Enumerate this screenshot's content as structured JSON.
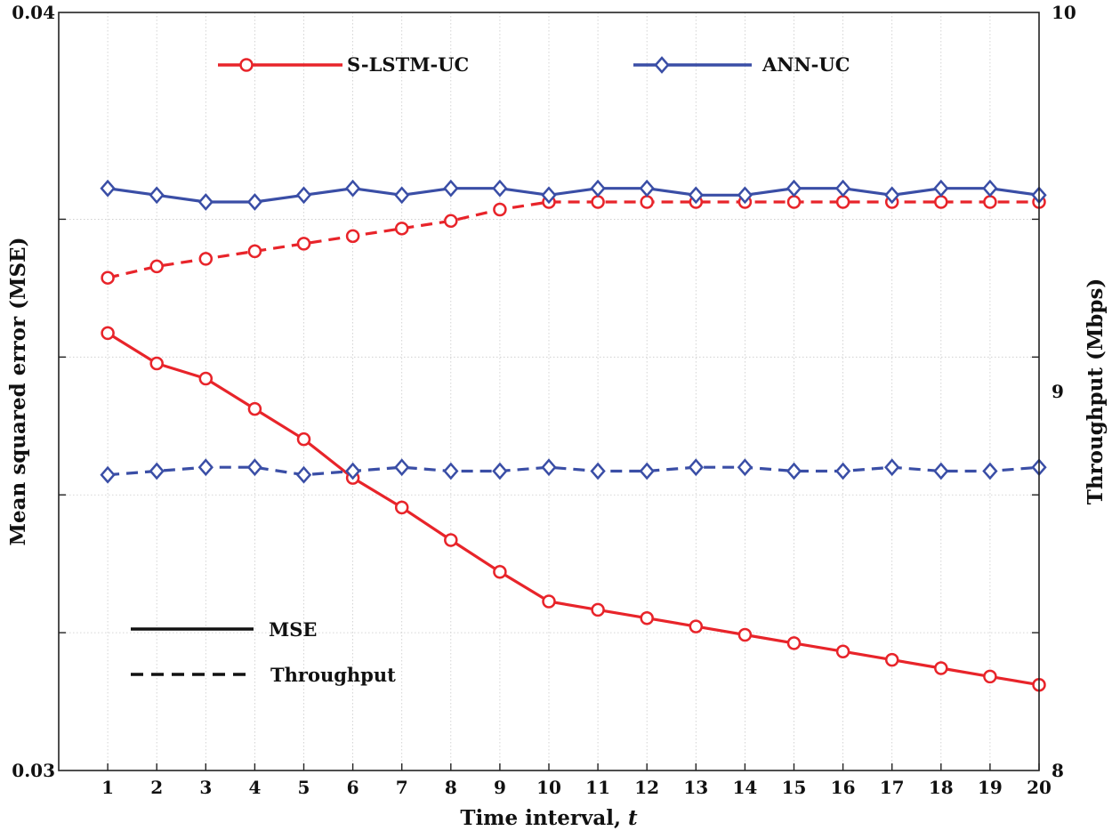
{
  "chart_data": {
    "type": "line",
    "xlabel": "Time interval,",
    "xlabel_var": "t",
    "ylabel_left": "Mean squared error (MSE)",
    "ylabel_right": "Throughput (Mbps)",
    "x": [
      1,
      2,
      3,
      4,
      5,
      6,
      7,
      8,
      9,
      10,
      11,
      12,
      13,
      14,
      15,
      16,
      17,
      18,
      19,
      20
    ],
    "x_tick_labels": [
      "1",
      "2",
      "3",
      "4",
      "5",
      "6",
      "7",
      "8",
      "9",
      "10",
      "11",
      "12",
      "13",
      "14",
      "15",
      "16",
      "17",
      "18",
      "19",
      "20"
    ],
    "xlim": [
      0,
      20
    ],
    "ylim_left": [
      0.03,
      0.04
    ],
    "ylim_right": [
      8,
      10
    ],
    "left_tick_values": [
      0.03,
      0.04
    ],
    "left_tick_labels": [
      "0.03",
      "0.04"
    ],
    "right_tick_values": [
      8,
      9,
      10
    ],
    "right_tick_labels": [
      "8",
      "9",
      "10"
    ],
    "grid_fractions": [
      0.1818,
      0.3636,
      0.5454,
      0.7272
    ],
    "grid": true,
    "series": [
      {
        "name": "S-LSTM-UC",
        "metric": "MSE",
        "axis": "left",
        "style": "solid",
        "marker": "circle",
        "color": "#e8242a",
        "values": [
          0.03577,
          0.03537,
          0.03517,
          0.03477,
          0.03437,
          0.03386,
          0.03347,
          0.03304,
          0.03262,
          0.03223,
          0.03212,
          0.03201,
          0.0319,
          0.03179,
          0.03168,
          0.03157,
          0.03146,
          0.03135,
          0.03124,
          0.03113
        ]
      },
      {
        "name": "S-LSTM-UC",
        "metric": "Throughput",
        "axis": "right",
        "style": "dashed",
        "marker": "circle",
        "color": "#e8242a",
        "values": [
          9.3,
          9.33,
          9.35,
          9.37,
          9.39,
          9.41,
          9.43,
          9.45,
          9.48,
          9.5,
          9.5,
          9.5,
          9.5,
          9.5,
          9.5,
          9.5,
          9.5,
          9.5,
          9.5,
          9.5
        ]
      },
      {
        "name": "ANN-UC",
        "metric": "MSE",
        "axis": "left",
        "style": "solid",
        "marker": "diamond",
        "color": "#3a4ea6",
        "values": [
          0.03768,
          0.03759,
          0.0375,
          0.0375,
          0.03759,
          0.03768,
          0.03759,
          0.03768,
          0.03768,
          0.03759,
          0.03768,
          0.03768,
          0.03759,
          0.03759,
          0.03768,
          0.03768,
          0.03759,
          0.03768,
          0.03768,
          0.03759
        ]
      },
      {
        "name": "ANN-UC",
        "metric": "Throughput",
        "axis": "right",
        "style": "dashed",
        "marker": "diamond",
        "color": "#3a4ea6",
        "values": [
          8.78,
          8.79,
          8.8,
          8.8,
          8.78,
          8.79,
          8.8,
          8.79,
          8.79,
          8.8,
          8.79,
          8.79,
          8.8,
          8.8,
          8.79,
          8.79,
          8.8,
          8.79,
          8.79,
          8.8
        ]
      }
    ],
    "legend_models": [
      {
        "label": "S-LSTM-UC",
        "color": "#e8242a",
        "marker": "circle"
      },
      {
        "label": "ANN-UC",
        "color": "#3a4ea6",
        "marker": "diamond"
      }
    ],
    "legend_styles": [
      {
        "label": "MSE",
        "style": "solid"
      },
      {
        "label": "Throughput",
        "style": "dashed"
      }
    ],
    "legend_models_position": "top",
    "legend_styles_position": "bottom-left"
  }
}
